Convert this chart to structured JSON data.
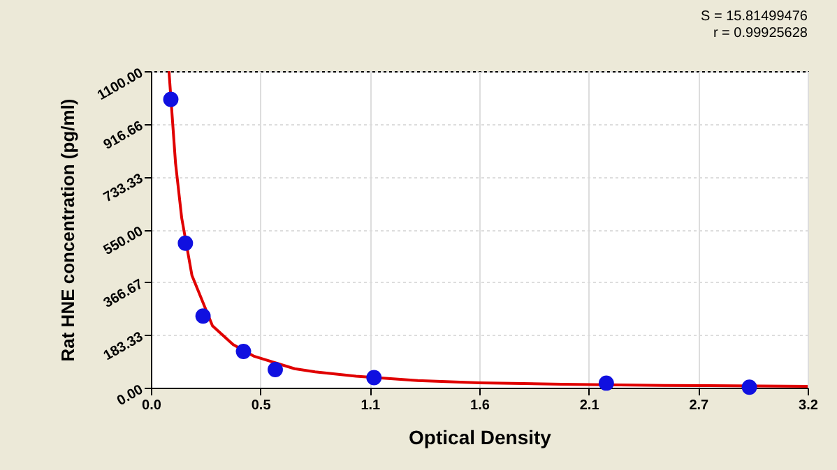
{
  "chart_data": {
    "type": "scatter",
    "xlabel": "Optical Density",
    "ylabel": "Rat HNE concentration (pg/ml)",
    "annotations": [
      "S = 15.81499476",
      "r = 0.99925628"
    ],
    "xlim": [
      0,
      3.2
    ],
    "ylim": [
      0,
      1100
    ],
    "xticks": [
      {
        "value": 0,
        "label": "0.0"
      },
      {
        "value": 0.5333,
        "label": "0.5"
      },
      {
        "value": 1.0667,
        "label": "1.1"
      },
      {
        "value": 1.6,
        "label": "1.6"
      },
      {
        "value": 2.1333,
        "label": "2.1"
      },
      {
        "value": 2.6667,
        "label": "2.7"
      },
      {
        "value": 3.2,
        "label": "3.2"
      }
    ],
    "yticks": [
      {
        "value": 0,
        "label": "0.00"
      },
      {
        "value": 183.33,
        "label": "183.33"
      },
      {
        "value": 366.67,
        "label": "366.67"
      },
      {
        "value": 550,
        "label": "550.00"
      },
      {
        "value": 733.33,
        "label": "733.33"
      },
      {
        "value": 916.66,
        "label": "916.66"
      },
      {
        "value": 1100,
        "label": "1100.00"
      }
    ],
    "grid": true,
    "series": [
      {
        "type": "line",
        "color": "#e00000",
        "x": [
          0.088,
          0.12,
          0.15,
          0.2,
          0.3,
          0.4,
          0.5,
          0.7,
          0.8,
          1.0,
          1.3,
          1.6,
          2.0,
          2.5,
          3.2
        ],
        "values": [
          1100,
          780,
          590,
          390,
          215,
          150,
          110,
          66,
          55,
          40,
          25,
          17,
          12,
          8,
          5
        ]
      },
      {
        "type": "scatter",
        "marker": "circle",
        "color": "#1010e0",
        "x": [
          0.097,
          0.168,
          0.254,
          0.451,
          0.606,
          1.087,
          2.219,
          2.916
        ],
        "values": [
          1002,
          502,
          249,
          126,
          63,
          35,
          16,
          2
        ]
      }
    ]
  }
}
